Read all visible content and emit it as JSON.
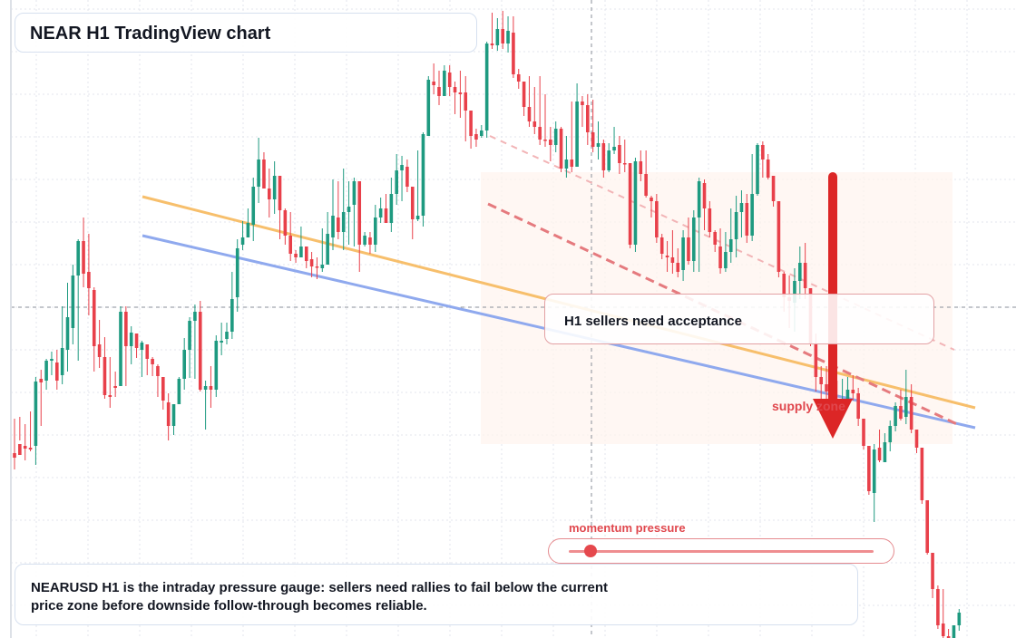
{
  "header": {
    "title": "NEAR H1 TradingView chart"
  },
  "annotations": {
    "acceptance": "H1 sellers need acceptance",
    "supply_label": "supply zone",
    "momentum_label": "momentum pressure",
    "footer": "NEARUSD H1 is the intraday pressure gauge: sellers need rallies to fail below the current price zone before downside follow-through becomes reliable."
  },
  "gauge": {
    "level": 0.07,
    "color": "#e5484d"
  },
  "colors": {
    "up": "#1e9a80",
    "down": "#e8404a",
    "trendline_orange": "#f7bf6c",
    "trendline_blue": "#8fa9ee",
    "bear_arrow": "#dc2626",
    "grid": "#e3e6ec",
    "zone_fill": "#fff4ee"
  },
  "chart_data": {
    "type": "candlestick",
    "symbol": "NEARUSD",
    "timeframe": "H1",
    "grid": true,
    "ylim": [
      0,
      704
    ],
    "trendlines": [
      {
        "color": "orange",
        "from": [
          157,
          217
        ],
        "to": [
          1075,
          450
        ]
      },
      {
        "color": "blue",
        "from": [
          157,
          260
        ],
        "to": [
          1075,
          472
        ]
      },
      {
        "color": "red-dashed",
        "from": [
          538,
          225
        ],
        "to": [
          1055,
          468
        ]
      },
      {
        "color": "pink-dashed",
        "from": [
          540,
          150
        ],
        "to": [
          1052,
          386
        ]
      }
    ],
    "zone": {
      "x": [
        530,
        1050
      ],
      "y": [
        190,
        490
      ]
    },
    "crosshair": {
      "x": 652,
      "y": 339
    },
    "arrow": {
      "x": 918,
      "from": 195,
      "to": 484
    },
    "candles": [
      [
        500,
        462,
        505,
        518
      ],
      [
        490,
        460,
        502,
        486
      ],
      [
        492,
        468,
        495,
        508
      ],
      [
        494,
        454,
        496,
        498
      ],
      [
        492,
        416,
        421,
        513
      ],
      [
        418,
        408,
        422,
        470
      ],
      [
        420,
        396,
        398,
        430
      ],
      [
        398,
        388,
        396,
        414
      ],
      [
        400,
        386,
        420,
        430
      ],
      [
        414,
        338,
        384,
        424
      ],
      [
        386,
        312,
        350,
        410
      ],
      [
        362,
        292,
        304,
        380
      ],
      [
        304,
        264,
        266,
        398
      ],
      [
        266,
        240,
        302,
        317
      ],
      [
        300,
        258,
        318,
        348
      ],
      [
        320,
        317,
        382,
        410
      ],
      [
        380,
        353,
        394,
        406
      ],
      [
        394,
        372,
        436,
        440
      ],
      [
        436,
        394,
        438,
        450
      ],
      [
        426,
        410,
        428,
        438
      ],
      [
        426,
        338,
        344,
        426
      ],
      [
        344,
        338,
        382,
        426
      ],
      [
        382,
        360,
        367,
        402
      ],
      [
        368,
        368,
        384,
        395
      ],
      [
        386,
        376,
        378,
        416
      ],
      [
        380,
        388,
        396,
        414
      ],
      [
        396,
        394,
        402,
        415
      ],
      [
        404,
        402,
        415,
        438
      ],
      [
        416,
        420,
        442,
        452
      ],
      [
        444,
        434,
        470,
        486
      ],
      [
        470,
        446,
        446,
        480
      ],
      [
        446,
        416,
        418,
        442
      ],
      [
        418,
        373,
        386,
        430
      ],
      [
        386,
        350,
        354,
        417
      ],
      [
        354,
        336,
        344,
        418
      ],
      [
        344,
        332,
        430,
        432
      ],
      [
        430,
        420,
        426,
        474
      ],
      [
        426,
        404,
        430,
        450
      ],
      [
        430,
        370,
        376,
        438
      ],
      [
        378,
        356,
        376,
        392
      ],
      [
        374,
        356,
        366,
        380
      ],
      [
        366,
        300,
        330,
        374
      ],
      [
        328,
        264,
        274,
        344
      ],
      [
        270,
        244,
        262,
        276
      ],
      [
        262,
        230,
        246,
        260
      ],
      [
        248,
        196,
        206,
        266
      ],
      [
        206,
        152,
        176,
        224
      ],
      [
        176,
        168,
        208,
        182
      ],
      [
        208,
        186,
        220,
        240
      ],
      [
        220,
        178,
        194,
        236
      ],
      [
        194,
        194,
        232,
        264
      ],
      [
        232,
        230,
        260,
        270
      ],
      [
        260,
        234,
        280,
        288
      ],
      [
        280,
        276,
        284,
        290
      ],
      [
        284,
        250,
        272,
        284
      ],
      [
        272,
        272,
        288,
        296
      ],
      [
        286,
        278,
        294,
        306
      ],
      [
        294,
        284,
        294,
        308
      ],
      [
        296,
        252,
        292,
        300
      ],
      [
        292,
        234,
        258,
        272
      ],
      [
        262,
        198,
        238,
        276
      ],
      [
        240,
        200,
        256,
        264
      ],
      [
        256,
        186,
        234,
        276
      ],
      [
        234,
        200,
        228,
        270
      ],
      [
        226,
        196,
        200,
        272
      ],
      [
        200,
        218,
        270,
        300
      ],
      [
        270,
        256,
        260,
        272
      ],
      [
        262,
        256,
        270,
        280
      ],
      [
        270,
        226,
        240,
        278
      ],
      [
        240,
        218,
        230,
        246
      ],
      [
        230,
        214,
        246,
        246
      ],
      [
        246,
        196,
        214,
        256
      ],
      [
        214,
        170,
        188,
        226
      ],
      [
        188,
        172,
        182,
        222
      ],
      [
        184,
        176,
        206,
        212
      ],
      [
        206,
        232,
        242,
        264
      ],
      [
        242,
        166,
        238,
        244
      ],
      [
        238,
        146,
        148,
        250
      ],
      [
        150,
        84,
        88,
        146
      ],
      [
        90,
        70,
        94,
        104
      ],
      [
        96,
        78,
        106,
        116
      ],
      [
        106,
        72,
        78,
        88
      ],
      [
        80,
        72,
        96,
        106
      ],
      [
        96,
        90,
        102,
        126
      ],
      [
        102,
        78,
        104,
        130
      ],
      [
        102,
        84,
        122,
        156
      ],
      [
        122,
        132,
        150,
        164
      ],
      [
        148,
        142,
        154,
        162
      ],
      [
        150,
        138,
        144,
        152
      ],
      [
        144,
        46,
        48,
        152
      ],
      [
        48,
        14,
        50,
        54
      ],
      [
        50,
        20,
        32,
        56
      ],
      [
        32,
        12,
        48,
        54
      ],
      [
        48,
        18,
        34,
        58
      ],
      [
        36,
        18,
        82,
        86
      ],
      [
        82,
        76,
        90,
        98
      ],
      [
        90,
        96,
        118,
        128
      ],
      [
        118,
        84,
        134,
        140
      ],
      [
        134,
        96,
        140,
        148
      ],
      [
        140,
        84,
        154,
        160
      ],
      [
        154,
        104,
        154,
        162
      ],
      [
        154,
        140,
        160,
        178
      ],
      [
        160,
        134,
        142,
        168
      ],
      [
        142,
        140,
        186,
        190
      ],
      [
        186,
        150,
        176,
        196
      ],
      [
        176,
        112,
        184,
        190
      ],
      [
        184,
        92,
        112,
        126
      ],
      [
        112,
        106,
        116,
        140
      ],
      [
        116,
        104,
        146,
        160
      ],
      [
        146,
        110,
        162,
        168
      ],
      [
        162,
        134,
        158,
        176
      ],
      [
        158,
        154,
        188,
        196
      ],
      [
        188,
        158,
        166,
        190
      ],
      [
        166,
        140,
        162,
        170
      ],
      [
        160,
        150,
        180,
        192
      ],
      [
        180,
        154,
        180,
        190
      ],
      [
        180,
        226,
        270,
        274
      ],
      [
        270,
        174,
        178,
        278
      ],
      [
        178,
        166,
        192,
        200
      ],
      [
        192,
        166,
        216,
        218
      ],
      [
        218,
        216,
        222,
        240
      ],
      [
        222,
        214,
        262,
        268
      ],
      [
        262,
        258,
        280,
        286
      ],
      [
        282,
        266,
        284,
        300
      ],
      [
        284,
        254,
        290,
        302
      ],
      [
        290,
        274,
        300,
        306
      ],
      [
        298,
        254,
        262,
        310
      ],
      [
        262,
        240,
        288,
        292
      ],
      [
        288,
        232,
        240,
        300
      ],
      [
        240,
        196,
        200,
        300
      ],
      [
        202,
        198,
        230,
        254
      ],
      [
        230,
        222,
        256,
        262
      ],
      [
        256,
        254,
        270,
        278
      ],
      [
        272,
        252,
        296,
        302
      ],
      [
        296,
        256,
        278,
        300
      ],
      [
        278,
        230,
        264,
        290
      ],
      [
        264,
        216,
        234,
        284
      ],
      [
        234,
        210,
        224,
        262
      ],
      [
        224,
        214,
        260,
        268
      ],
      [
        260,
        170,
        214,
        266
      ],
      [
        214,
        158,
        160,
        216
      ],
      [
        160,
        156,
        176,
        196
      ],
      [
        176,
        170,
        196,
        198
      ],
      [
        194,
        196,
        222,
        228
      ],
      [
        222,
        236,
        300,
        306
      ],
      [
        302,
        300,
        328,
        344
      ],
      [
        328,
        304,
        332,
        362
      ],
      [
        334,
        296,
        310,
        366
      ],
      [
        310,
        272,
        290,
        330
      ],
      [
        290,
        268,
        318,
        330
      ],
      [
        318,
        326,
        380,
        382
      ],
      [
        380,
        368,
        416,
        432
      ],
      [
        416,
        404,
        424,
        454
      ],
      [
        424,
        404,
        432,
        440
      ],
      [
        432,
        412,
        440,
        452
      ],
      [
        440,
        420,
        450,
        456
      ],
      [
        450,
        418,
        440,
        456
      ],
      [
        440,
        416,
        430,
        450
      ],
      [
        430,
        414,
        434,
        442
      ],
      [
        434,
        428,
        462,
        470
      ],
      [
        462,
        476,
        492,
        496
      ],
      [
        492,
        502,
        542,
        546
      ],
      [
        544,
        490,
        496,
        576
      ],
      [
        494,
        474,
        508,
        510
      ],
      [
        510,
        478,
        488,
        510
      ],
      [
        488,
        464,
        470,
        498
      ],
      [
        470,
        444,
        448,
        476
      ],
      [
        448,
        430,
        462,
        464
      ],
      [
        460,
        408,
        438,
        468
      ],
      [
        438,
        424,
        474,
        478
      ],
      [
        474,
        486,
        494,
        500
      ],
      [
        494,
        512,
        552,
        556
      ],
      [
        552,
        582,
        610,
        612
      ],
      [
        610,
        612,
        650,
        660
      ],
      [
        650,
        646,
        690,
        694
      ],
      [
        688,
        650,
        702,
        704
      ],
      [
        702,
        694,
        704,
        704
      ],
      [
        704,
        696,
        690,
        704
      ],
      [
        690,
        672,
        676,
        696
      ]
    ]
  }
}
